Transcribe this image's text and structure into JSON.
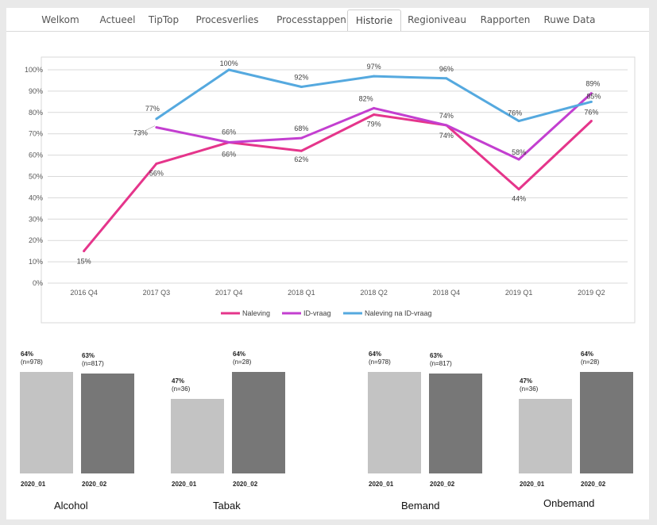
{
  "tabs": [
    {
      "label": "Welkom",
      "active": false
    },
    {
      "label": "Actueel",
      "active": false
    },
    {
      "label": "TipTop",
      "active": false
    },
    {
      "label": "Procesverlies",
      "active": false
    },
    {
      "label": "Processtappen",
      "active": false
    },
    {
      "label": "Historie",
      "active": true
    },
    {
      "label": "Regioniveau",
      "active": false
    },
    {
      "label": "Rapporten",
      "active": false
    },
    {
      "label": "Ruwe Data",
      "active": false
    }
  ],
  "chart_data": [
    {
      "type": "line",
      "categories": [
        "2016 Q4",
        "2017 Q3",
        "2017 Q4",
        "2018 Q1",
        "2018 Q2",
        "2018 Q4",
        "2019 Q1",
        "2019 Q2"
      ],
      "ylim": [
        0,
        100
      ],
      "yticks": [
        "0%",
        "10%",
        "20%",
        "30%",
        "40%",
        "50%",
        "60%",
        "70%",
        "80%",
        "90%",
        "100%"
      ],
      "grid": true,
      "legend": "bottom",
      "series": [
        {
          "name": "Naleving",
          "color": "#e5358b",
          "values": [
            15,
            56,
            66,
            62,
            79,
            74,
            44,
            76
          ],
          "labels": [
            "15%",
            "56%",
            "66%",
            "62%",
            "79%",
            "74%",
            "44%",
            "76%"
          ]
        },
        {
          "name": "ID-vraag",
          "color": "#c33fd0",
          "values": [
            null,
            73,
            66,
            68,
            82,
            74,
            58,
            89
          ],
          "labels": [
            "",
            "73%",
            "66%",
            "68%",
            "82%",
            "74%",
            "58%",
            "89%"
          ]
        },
        {
          "name": "Naleving na ID-vraag",
          "color": "#55a9df",
          "values": [
            null,
            77,
            100,
            92,
            97,
            96,
            76,
            85
          ],
          "labels": [
            "",
            "77%",
            "100%",
            "92%",
            "97%",
            "96%",
            "76%",
            "85%"
          ]
        }
      ]
    },
    {
      "type": "bar",
      "title": "Alcohol",
      "categories": [
        "2020_01",
        "2020_02"
      ],
      "values": [
        64,
        63
      ],
      "labels": [
        "64%",
        "63%"
      ],
      "n": [
        "(n=978)",
        "(n=817)"
      ],
      "colors": [
        "#c3c3c3",
        "#777777"
      ]
    },
    {
      "type": "bar",
      "title": "Tabak",
      "categories": [
        "2020_01",
        "2020_02"
      ],
      "values": [
        47,
        64
      ],
      "labels": [
        "47%",
        "64%"
      ],
      "n": [
        "(n=36)",
        "(n=28)"
      ],
      "colors": [
        "#c3c3c3",
        "#777777"
      ]
    },
    {
      "type": "bar",
      "title": "Bemand",
      "categories": [
        "2020_01",
        "2020_02"
      ],
      "values": [
        64,
        63
      ],
      "labels": [
        "64%",
        "63%"
      ],
      "n": [
        "(n=978)",
        "(n=817)"
      ],
      "colors": [
        "#c3c3c3",
        "#777777"
      ]
    },
    {
      "type": "bar",
      "title": "Onbemand",
      "categories": [
        "2020_01",
        "2020_02"
      ],
      "values": [
        47,
        64
      ],
      "labels": [
        "47%",
        "64%"
      ],
      "n": [
        "(n=36)",
        "(n=28)"
      ],
      "colors": [
        "#c3c3c3",
        "#777777"
      ]
    }
  ]
}
